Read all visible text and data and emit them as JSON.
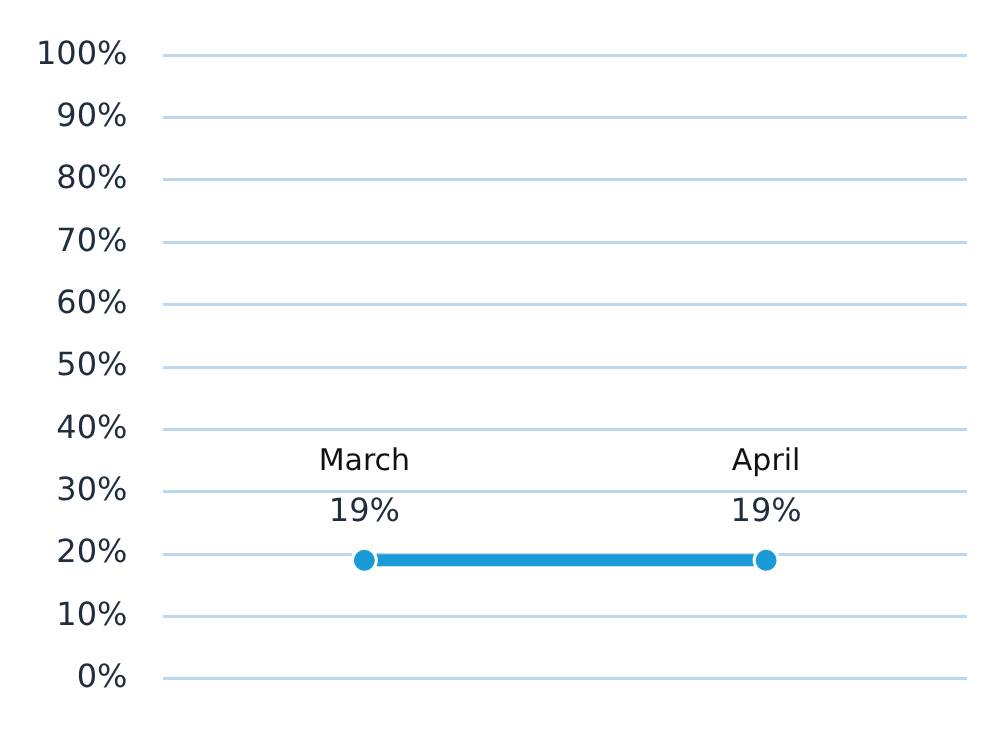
{
  "chart_data": {
    "type": "line",
    "categories": [
      "March",
      "April"
    ],
    "series": [
      {
        "color": "#1a9bd7",
        "values": [
          19,
          19
        ]
      }
    ],
    "value_labels": [
      "19%",
      "19%"
    ],
    "ylim": [
      0,
      100
    ],
    "yticks": [
      {
        "value": 0,
        "label": "0%"
      },
      {
        "value": 10,
        "label": "10%"
      },
      {
        "value": 20,
        "label": "20%"
      },
      {
        "value": 30,
        "label": "30%"
      },
      {
        "value": 40,
        "label": "40%"
      },
      {
        "value": 50,
        "label": "50%"
      },
      {
        "value": 60,
        "label": "60%"
      },
      {
        "value": 70,
        "label": "70%"
      },
      {
        "value": 80,
        "label": "80%"
      },
      {
        "value": 90,
        "label": "90%"
      },
      {
        "value": 100,
        "label": "100%"
      }
    ],
    "grid": "y",
    "tick_labels": "y",
    "marker": "circle",
    "line_style": "solid",
    "legend": false
  }
}
